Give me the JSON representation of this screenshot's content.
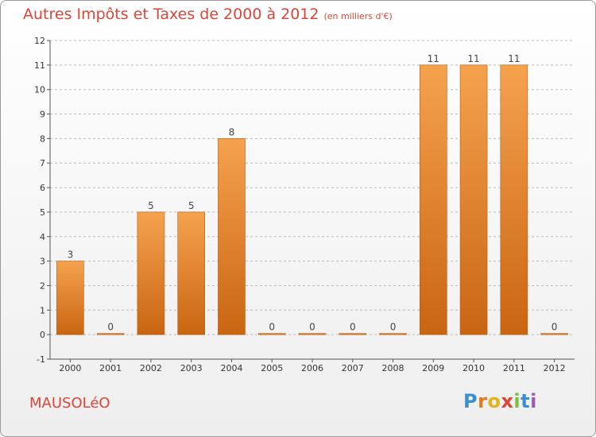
{
  "title": "Autres Impôts et Taxes de 2000 à 2012",
  "unit": "(en milliers d'€)",
  "commune": "MAUSOLéO",
  "brand": [
    "P",
    "r",
    "o",
    "x",
    "i",
    "t",
    "i"
  ],
  "colors": {
    "bar_top": "#f5a24f",
    "bar_bottom": "#c96512",
    "title": "#d8473a",
    "grid": "#bbbbbb"
  },
  "chart_data": {
    "type": "bar",
    "categories": [
      "2000",
      "2001",
      "2002",
      "2003",
      "2004",
      "2005",
      "2006",
      "2007",
      "2008",
      "2009",
      "2010",
      "2011",
      "2012"
    ],
    "values": [
      3,
      0,
      5,
      5,
      8,
      0,
      0,
      0,
      0,
      11,
      11,
      11,
      0
    ],
    "ylim": [
      -1,
      12
    ],
    "yticks": [
      -1,
      0,
      1,
      2,
      3,
      4,
      5,
      6,
      7,
      8,
      9,
      10,
      11,
      12
    ],
    "grid": true,
    "grid_style": "dashed horizontal"
  }
}
